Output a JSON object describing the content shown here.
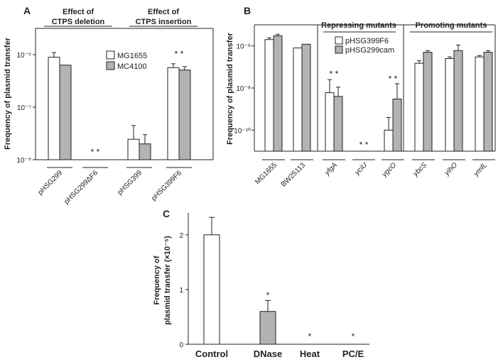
{
  "colors": {
    "series1": "#ffffff",
    "series2": "#b3b3b3",
    "axis": "#222222"
  },
  "chart_data": [
    {
      "panel": "A",
      "type": "bar",
      "yscale": "log",
      "ylim": [
        1e-09,
        0.0001
      ],
      "ylabel": "Frequency of plasmid transfer",
      "yticks": [
        {
          "value": 1e-09,
          "label": "10⁻⁹"
        },
        {
          "value": 1e-07,
          "label": "10⁻⁷"
        },
        {
          "value": 1e-05,
          "label": "10⁻⁵"
        }
      ],
      "groups": [
        {
          "title": [
            "Effect of",
            "CTPS deletion"
          ]
        },
        {
          "title": [
            "Effect of",
            "CTPS insertion"
          ]
        }
      ],
      "legend": [
        "MG1655",
        "MC4100"
      ],
      "categories": [
        "pHSG299",
        "pHSG299ΔF6",
        "pHSG399",
        "pHSG399F6"
      ],
      "series": [
        {
          "name": "MG1655",
          "values": [
            8e-06,
            null,
            6e-09,
            3.2e-06
          ],
          "err_upper": [
            1.2e-05,
            null,
            2e-08,
            4.5e-06
          ]
        },
        {
          "name": "MC4100",
          "values": [
            4e-06,
            null,
            4e-09,
            2.6e-06
          ],
          "err_upper": [
            null,
            null,
            9e-09,
            3.5e-06
          ]
        }
      ],
      "asterisks": [
        "",
        "* *",
        "",
        "* *"
      ]
    },
    {
      "panel": "B",
      "type": "bar",
      "yscale": "log",
      "ylim": [
        1e-11,
        1e-05
      ],
      "ylabel": "Frequency of plasmid transfer",
      "yticks": [
        {
          "value": 1e-10,
          "label": "10⁻¹⁰"
        },
        {
          "value": 1e-08,
          "label": "10⁻⁸"
        },
        {
          "value": 1e-06,
          "label": "10⁻⁶"
        }
      ],
      "groups": [
        {
          "title": "Repressing mutants"
        },
        {
          "title": "Promoting mutants"
        }
      ],
      "legend": [
        "pHSG399F6",
        "pHSG299cam"
      ],
      "categories": [
        "MG1655",
        "BW25113",
        "yfgA",
        "yciU",
        "ygcO",
        "ybcS",
        "yihO",
        "ymfL"
      ],
      "series": [
        {
          "name": "pHSG399F6",
          "values": [
            2e-06,
            8e-07,
            6e-09,
            null,
            1e-10,
            1.5e-07,
            2.5e-07,
            3e-07
          ],
          "err_upper": [
            2.4e-06,
            null,
            2.5e-08,
            null,
            4e-10,
            2e-07,
            3e-07,
            3.5e-07
          ]
        },
        {
          "name": "pHSG299cam",
          "values": [
            3e-06,
            1.2e-06,
            4e-09,
            null,
            3e-09,
            5e-07,
            6e-07,
            5e-07
          ],
          "err_upper": [
            3.6e-06,
            null,
            1.1e-08,
            null,
            1.6e-08,
            6e-07,
            1.1e-06,
            6e-07
          ]
        }
      ],
      "asterisks": [
        "",
        "",
        "* *",
        "* *",
        "* *",
        "",
        "",
        ""
      ]
    },
    {
      "panel": "C",
      "type": "bar",
      "yscale": "linear",
      "ylim": [
        0,
        2.4
      ],
      "ylabel": [
        "Frequency of",
        "plasmid transfer (×10⁻⁵)"
      ],
      "yticks": [
        {
          "value": 0,
          "label": "0"
        },
        {
          "value": 1,
          "label": "1"
        },
        {
          "value": 2,
          "label": "2"
        }
      ],
      "categories": [
        "Control",
        "DNase",
        "Heat",
        "PC/E"
      ],
      "values": [
        2.0,
        0.6,
        0,
        0
      ],
      "err_upper": [
        2.32,
        0.8,
        null,
        null
      ],
      "fills": [
        "series1",
        "series2",
        "series1",
        "series1"
      ],
      "asterisks": [
        "",
        "*",
        "*",
        "*"
      ]
    }
  ]
}
